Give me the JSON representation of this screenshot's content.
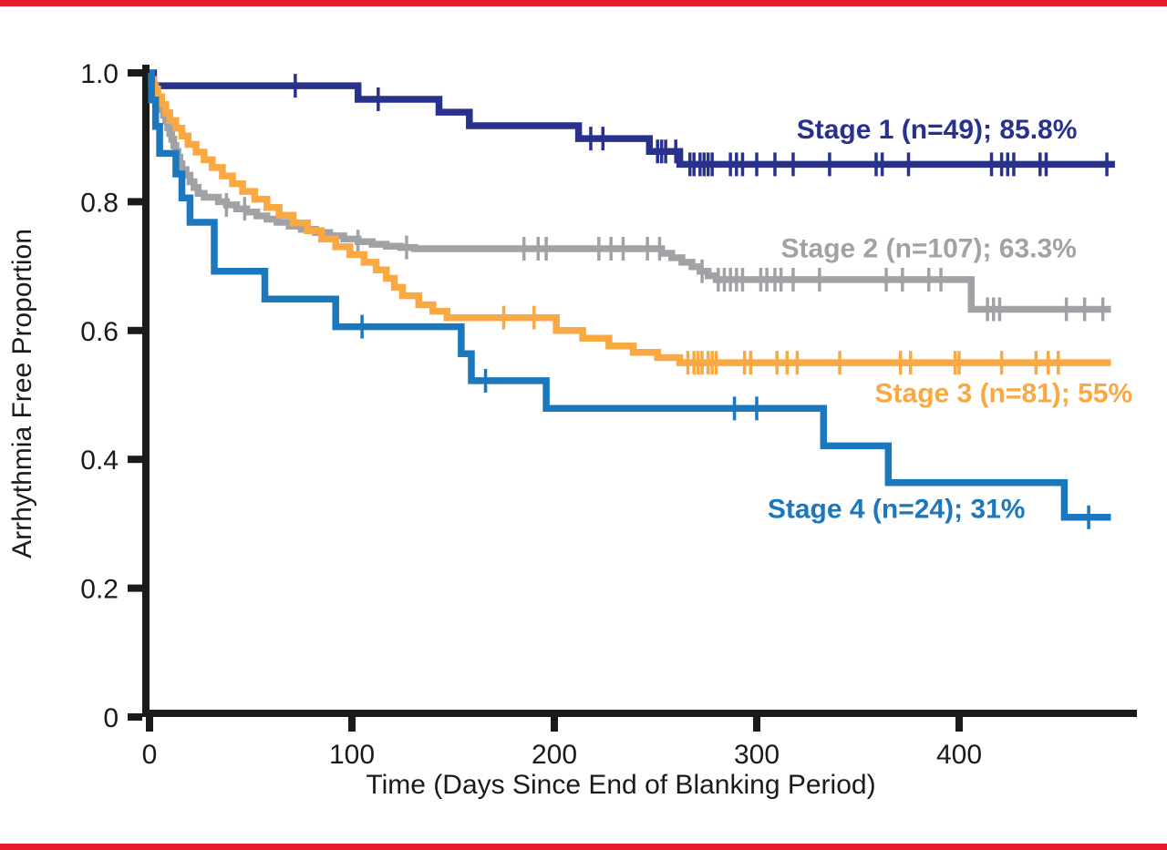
{
  "page": {
    "background": "#ffffff",
    "accent_border_color": "#E81B2D"
  },
  "chart_data": {
    "type": "line",
    "subtype": "kaplan_meier_step",
    "title": "",
    "xlabel": "Time (Days Since End of Blanking Period)",
    "ylabel": "Arrhythmia Free Proportion",
    "x_ticks": [
      0,
      100,
      200,
      300,
      400
    ],
    "x_tick_labels": [
      "0",
      "100",
      "200",
      "300",
      "400"
    ],
    "y_ticks": [
      1.0,
      0.8,
      0.6,
      0.4,
      0.2,
      0
    ],
    "y_tick_labels": [
      "1.0",
      "0.8",
      "0.6",
      "0.4",
      "0.2",
      "0"
    ],
    "xlim": [
      0,
      487
    ],
    "ylim": [
      0,
      1.0
    ],
    "grid": false,
    "legend_position": "labels-inline-right",
    "axis_color": "#1a1a1a",
    "series": [
      {
        "name": "Stage 1",
        "label": "Stage 1 (n=49); 85.8%",
        "n": 49,
        "final_pct": "85.8%",
        "color": "#28318D",
        "start_value": 1.0,
        "end_day": 477,
        "label_anchor": {
          "day": 389,
          "value": 0.912
        },
        "steps": [
          [
            2,
            0.98
          ],
          [
            103,
            0.959
          ],
          [
            143,
            0.939
          ],
          [
            158,
            0.918
          ],
          [
            212,
            0.898
          ],
          [
            247,
            0.878
          ],
          [
            262,
            0.858
          ]
        ],
        "censor_days": [
          72,
          113,
          218,
          224,
          251,
          253,
          255,
          260,
          267,
          269,
          272,
          274,
          276,
          278,
          287,
          290,
          293,
          300,
          309,
          318,
          336,
          359,
          362,
          375,
          416,
          421,
          424,
          427,
          440,
          443,
          473
        ]
      },
      {
        "name": "Stage 2",
        "label": "Stage 2 (n=107); 63.3%",
        "n": 107,
        "final_pct": "63.3%",
        "color": "#A0A2A5",
        "start_value": 1.0,
        "end_day": 475,
        "label_anchor": {
          "day": 385,
          "value": 0.728
        },
        "steps": [
          [
            1,
            0.99
          ],
          [
            2,
            0.981
          ],
          [
            3,
            0.971
          ],
          [
            4,
            0.962
          ],
          [
            5,
            0.953
          ],
          [
            6,
            0.943
          ],
          [
            7,
            0.934
          ],
          [
            8,
            0.925
          ],
          [
            9,
            0.915
          ],
          [
            10,
            0.906
          ],
          [
            11,
            0.897
          ],
          [
            12,
            0.887
          ],
          [
            13,
            0.878
          ],
          [
            14,
            0.869
          ],
          [
            15,
            0.859
          ],
          [
            16,
            0.85
          ],
          [
            18,
            0.841
          ],
          [
            20,
            0.831
          ],
          [
            22,
            0.822
          ],
          [
            24,
            0.813
          ],
          [
            27,
            0.807
          ],
          [
            34,
            0.8
          ],
          [
            38,
            0.795
          ],
          [
            43,
            0.789
          ],
          [
            48,
            0.784
          ],
          [
            53,
            0.778
          ],
          [
            58,
            0.773
          ],
          [
            63,
            0.768
          ],
          [
            69,
            0.762
          ],
          [
            75,
            0.757
          ],
          [
            82,
            0.752
          ],
          [
            89,
            0.747
          ],
          [
            96,
            0.742
          ],
          [
            103,
            0.738
          ],
          [
            110,
            0.734
          ],
          [
            117,
            0.731
          ],
          [
            124,
            0.729
          ],
          [
            131,
            0.727
          ],
          [
            253,
            0.72
          ],
          [
            258,
            0.713
          ],
          [
            263,
            0.706
          ],
          [
            268,
            0.699
          ],
          [
            272,
            0.692
          ],
          [
            276,
            0.685
          ],
          [
            280,
            0.679
          ],
          [
            406,
            0.633
          ]
        ],
        "censor_days": [
          38,
          47,
          103,
          127,
          185,
          192,
          196,
          222,
          228,
          234,
          246,
          252,
          273,
          281,
          284,
          287,
          290,
          293,
          302,
          305,
          309,
          312,
          318,
          331,
          364,
          372,
          385,
          391,
          414,
          417,
          420,
          453,
          462,
          471
        ]
      },
      {
        "name": "Stage 3",
        "label": "Stage 3 (n=81); 55%",
        "n": 81,
        "final_pct": "55%",
        "color": "#F9A842",
        "start_value": 1.0,
        "end_day": 475,
        "label_anchor": {
          "day": 422,
          "value": 0.503
        },
        "steps": [
          [
            1,
            0.988
          ],
          [
            2,
            0.975
          ],
          [
            4,
            0.963
          ],
          [
            6,
            0.951
          ],
          [
            8,
            0.938
          ],
          [
            10,
            0.926
          ],
          [
            13,
            0.914
          ],
          [
            16,
            0.902
          ],
          [
            19,
            0.889
          ],
          [
            23,
            0.877
          ],
          [
            27,
            0.865
          ],
          [
            31,
            0.853
          ],
          [
            36,
            0.84
          ],
          [
            41,
            0.828
          ],
          [
            46,
            0.816
          ],
          [
            52,
            0.804
          ],
          [
            58,
            0.791
          ],
          [
            64,
            0.779
          ],
          [
            71,
            0.767
          ],
          [
            78,
            0.755
          ],
          [
            85,
            0.742
          ],
          [
            92,
            0.73
          ],
          [
            99,
            0.718
          ],
          [
            106,
            0.706
          ],
          [
            112,
            0.694
          ],
          [
            117,
            0.681
          ],
          [
            121,
            0.667
          ],
          [
            125,
            0.654
          ],
          [
            133,
            0.64
          ],
          [
            140,
            0.63
          ],
          [
            147,
            0.62
          ],
          [
            201,
            0.6
          ],
          [
            214,
            0.588
          ],
          [
            227,
            0.576
          ],
          [
            239,
            0.566
          ],
          [
            251,
            0.558
          ],
          [
            262,
            0.55
          ]
        ],
        "censor_days": [
          175,
          190,
          266,
          269,
          271,
          273,
          276,
          278,
          280,
          294,
          297,
          310,
          315,
          320,
          341,
          371,
          376,
          398,
          400,
          421,
          438,
          444,
          449
        ]
      },
      {
        "name": "Stage 4",
        "label": "Stage 4 (n=24); 31%",
        "n": 24,
        "final_pct": "31%",
        "color": "#1B78BE",
        "start_value": 1.0,
        "end_day": 475,
        "label_anchor": {
          "day": 369,
          "value": 0.323
        },
        "steps": [
          [
            1,
            0.958
          ],
          [
            3,
            0.917
          ],
          [
            5,
            0.875
          ],
          [
            13,
            0.843
          ],
          [
            16,
            0.806
          ],
          [
            20,
            0.768
          ],
          [
            32,
            0.692
          ],
          [
            57,
            0.649
          ],
          [
            92,
            0.606
          ],
          [
            154,
            0.564
          ],
          [
            159,
            0.522
          ],
          [
            196,
            0.479
          ],
          [
            333,
            0.421
          ],
          [
            365,
            0.364
          ],
          [
            452,
            0.31
          ]
        ],
        "censor_days": [
          105,
          166,
          289,
          300,
          464
        ]
      }
    ]
  }
}
